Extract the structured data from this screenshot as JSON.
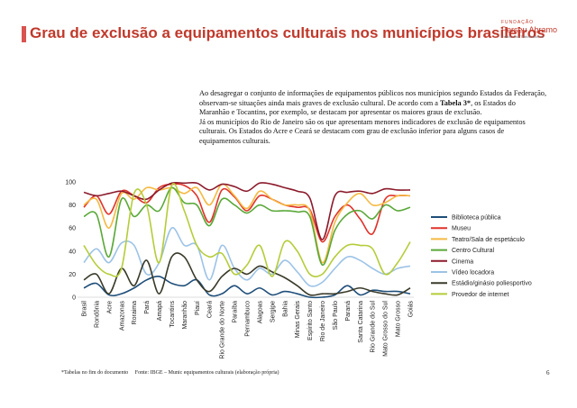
{
  "header": {
    "title": "Grau de exclusão a equipamentos culturais nos municípios brasileiros",
    "logo": {
      "top": "FUNDAÇÃO",
      "name": "Perseu Abramo",
      "sub": "Partido dos Trabalhadores"
    }
  },
  "text": {
    "p1a": "Ao desagregar o conjunto de informações de equipamentos públicos nos municípios segundo Estados da Federação, observam-se situações ainda mais graves de exclusão cultural. De acordo com a ",
    "p1b": "Tabela 3*",
    "p1c": ", os Estados do Maranhão e Tocantins, por exemplo, se destacam por apresentar os maiores graus de exclusão.",
    "p2": "Já os municípios do Rio de Janeiro são os que apresentam menores indicadores de exclusão de equipamentos culturais. Os Estados do Acre e Ceará se destacam com grau de exclusão inferior para alguns casos de equipamentos culturais."
  },
  "footer": {
    "note": "*Tabelas no fim do documento",
    "source": "Fonte: IBGE – Munic equipamentos culturais (elaboração própria)",
    "page": "6"
  },
  "chart_data": {
    "type": "line",
    "ylim": [
      0,
      100
    ],
    "yticks": [
      0,
      20,
      40,
      60,
      80,
      100
    ],
    "categories": [
      "Brasil",
      "Rondônia",
      "Acre",
      "Amazonas",
      "Roraima",
      "Pará",
      "Amapá",
      "Tocantins",
      "Maranhão",
      "Piauí",
      "Ceará",
      "Rio Grande do Norte",
      "Paraíba",
      "Pernambuco",
      "Alagoas",
      "Sergipe",
      "Bahia",
      "Minas Gerais",
      "Espírito Santo",
      "Rio de Janeiro",
      "São Paulo",
      "Paraná",
      "Santa Catarina",
      "Rio Grande do Sul",
      "Mato Grosso do Sul",
      "Mato Grosso",
      "Goiás"
    ],
    "series": [
      {
        "name": "Biblioteca pública",
        "color": "#1f4e79",
        "values": [
          8,
          12,
          2,
          3,
          8,
          15,
          18,
          12,
          10,
          15,
          2,
          3,
          10,
          3,
          8,
          2,
          5,
          3,
          0,
          0,
          2,
          10,
          2,
          6,
          5,
          5,
          3
        ]
      },
      {
        "name": "Museu",
        "color": "#e0332a",
        "values": [
          78,
          88,
          72,
          92,
          88,
          82,
          95,
          98,
          97,
          88,
          65,
          93,
          87,
          75,
          88,
          85,
          80,
          78,
          76,
          48,
          70,
          80,
          68,
          55,
          85,
          88,
          88
        ]
      },
      {
        "name": "Teatro/Sala de espetáculo",
        "color": "#f5b942",
        "values": [
          80,
          85,
          60,
          90,
          85,
          95,
          93,
          95,
          90,
          95,
          80,
          98,
          88,
          77,
          92,
          85,
          80,
          80,
          75,
          30,
          65,
          82,
          90,
          80,
          82,
          88,
          88
        ]
      },
      {
        "name": "Centro Cultural",
        "color": "#5aa838",
        "values": [
          70,
          72,
          35,
          85,
          70,
          80,
          75,
          95,
          82,
          80,
          62,
          85,
          80,
          73,
          80,
          75,
          75,
          74,
          70,
          28,
          58,
          72,
          75,
          68,
          80,
          75,
          78
        ]
      },
      {
        "name": "Cinema",
        "color": "#8b1a2b",
        "values": [
          91,
          88,
          90,
          92,
          88,
          85,
          93,
          99,
          99,
          99,
          93,
          98,
          96,
          92,
          99,
          98,
          95,
          92,
          86,
          50,
          88,
          91,
          92,
          90,
          94,
          93,
          93
        ]
      },
      {
        "name": "Vídeo locadora",
        "color": "#9dc3e6",
        "values": [
          30,
          42,
          30,
          47,
          45,
          20,
          30,
          60,
          45,
          45,
          15,
          45,
          25,
          15,
          25,
          20,
          32,
          22,
          10,
          13,
          25,
          35,
          32,
          25,
          20,
          25,
          27
        ]
      },
      {
        "name": "Estádio/ginásio poliesportivo",
        "color": "#3a3a2a",
        "values": [
          15,
          20,
          3,
          25,
          10,
          32,
          3,
          35,
          35,
          15,
          5,
          18,
          25,
          20,
          27,
          22,
          17,
          10,
          2,
          3,
          3,
          5,
          8,
          5,
          3,
          2,
          8
        ]
      },
      {
        "name": "Provedor de internet",
        "color": "#b5cc3a",
        "values": [
          45,
          28,
          20,
          25,
          90,
          80,
          30,
          97,
          75,
          45,
          35,
          38,
          20,
          28,
          45,
          18,
          48,
          40,
          20,
          20,
          35,
          45,
          45,
          42,
          20,
          30,
          48
        ]
      }
    ]
  }
}
